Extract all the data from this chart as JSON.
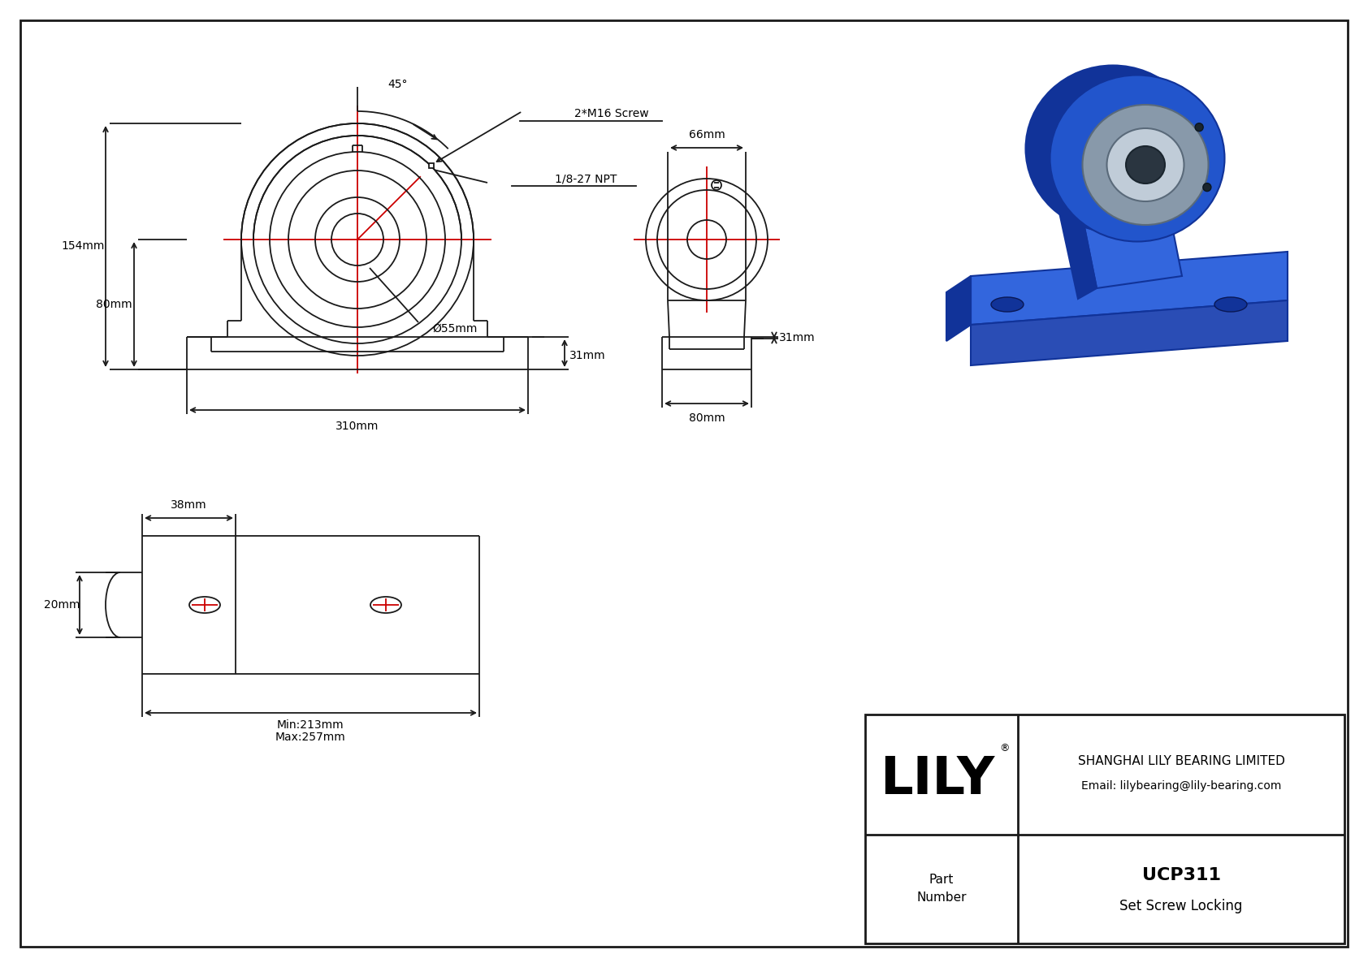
{
  "bg_color": "#ffffff",
  "line_color": "#1a1a1a",
  "red_color": "#cc0000",
  "company": "SHANGHAI LILY BEARING LIMITED",
  "email": "Email: lilybearing@lily-bearing.com",
  "part_number": "UCP311",
  "locking": "Set Screw Locking",
  "part_label_1": "Part",
  "part_label_2": "Number",
  "lily_text": "LILY",
  "dim_154": "154mm",
  "dim_80": "80mm",
  "dim_310": "310mm",
  "dim_bore": "Ø55mm",
  "dim_angle": "45°",
  "dim_npt": "1/8-27 NPT",
  "dim_screw": "2*M16 Screw",
  "dim_66": "66mm",
  "dim_80b": "80mm",
  "dim_31": "31mm",
  "dim_38": "38mm",
  "dim_min": "Min:213mm",
  "dim_max": "Max:257mm",
  "dim_20": "20mm",
  "blue_main": "#2255cc",
  "blue_light": "#3366dd",
  "blue_dark": "#113399",
  "blue_mid": "#2a4db5",
  "steel_col": "#8899aa",
  "steel_light": "#c0ccd8",
  "steel_dark": "#5a6a7a"
}
